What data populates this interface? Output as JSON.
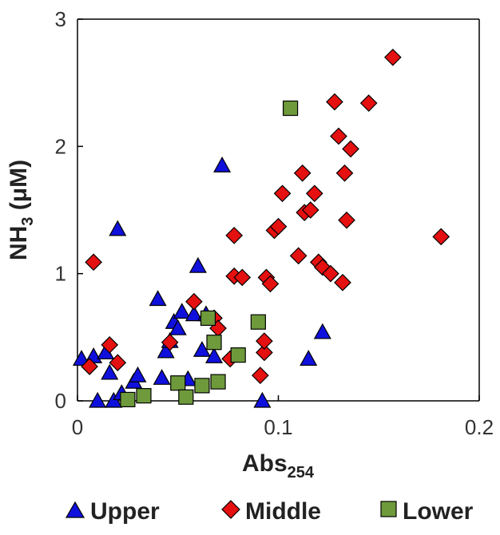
{
  "chart_data": {
    "type": "scatter",
    "xlabel": "Abs",
    "xlabel_sub": "254",
    "ylabel": "NH",
    "ylabel_sub": "3",
    "ylabel_suffix": " (μM)",
    "xlim": [
      0,
      0.2
    ],
    "ylim": [
      0,
      3
    ],
    "xticks": [
      0,
      0.1,
      0.2
    ],
    "xtick_labels": [
      "0",
      "0.1",
      "0.2"
    ],
    "yticks": [
      0,
      1,
      2,
      3
    ],
    "ytick_labels": [
      "0",
      "1",
      "2",
      "3"
    ],
    "grid": false,
    "legend_position": "bottom",
    "series": [
      {
        "name": "Upper",
        "marker": "triangle",
        "color": "#1010dd",
        "x": [
          0.002,
          0.008,
          0.01,
          0.014,
          0.016,
          0.018,
          0.02,
          0.022,
          0.028,
          0.03,
          0.04,
          0.042,
          0.044,
          0.046,
          0.048,
          0.05,
          0.052,
          0.055,
          0.058,
          0.06,
          0.062,
          0.064,
          0.068,
          0.072,
          0.092,
          0.115,
          0.122
        ],
        "y": [
          0.33,
          0.35,
          0.0,
          0.38,
          0.22,
          0.0,
          1.35,
          0.06,
          0.15,
          0.2,
          0.8,
          0.18,
          0.39,
          0.47,
          0.62,
          0.57,
          0.7,
          0.17,
          0.68,
          1.06,
          0.4,
          0.68,
          0.35,
          1.85,
          0.0,
          0.33,
          0.54
        ]
      },
      {
        "name": "Middle",
        "marker": "diamond",
        "color": "#e51010",
        "x": [
          0.006,
          0.008,
          0.016,
          0.02,
          0.046,
          0.058,
          0.068,
          0.07,
          0.076,
          0.078,
          0.078,
          0.082,
          0.091,
          0.093,
          0.093,
          0.094,
          0.096,
          0.098,
          0.1,
          0.102,
          0.11,
          0.112,
          0.113,
          0.116,
          0.118,
          0.12,
          0.122,
          0.126,
          0.128,
          0.13,
          0.132,
          0.133,
          0.134,
          0.136,
          0.145,
          0.157,
          0.181
        ],
        "y": [
          0.27,
          1.09,
          0.44,
          0.3,
          0.46,
          0.78,
          0.65,
          0.57,
          0.33,
          0.98,
          1.3,
          0.97,
          0.2,
          0.38,
          0.47,
          0.97,
          0.92,
          1.34,
          1.37,
          1.63,
          1.14,
          1.79,
          1.48,
          1.5,
          1.63,
          1.09,
          1.05,
          1.0,
          2.35,
          2.08,
          0.93,
          1.79,
          1.42,
          1.98,
          2.34,
          2.7,
          1.29
        ]
      },
      {
        "name": "Lower",
        "marker": "square",
        "color": "#6e9a3c",
        "x": [
          0.025,
          0.033,
          0.05,
          0.054,
          0.062,
          0.065,
          0.068,
          0.07,
          0.08,
          0.09,
          0.106
        ],
        "y": [
          0.01,
          0.04,
          0.14,
          0.03,
          0.12,
          0.65,
          0.46,
          0.15,
          0.36,
          0.62,
          2.3
        ]
      }
    ]
  }
}
